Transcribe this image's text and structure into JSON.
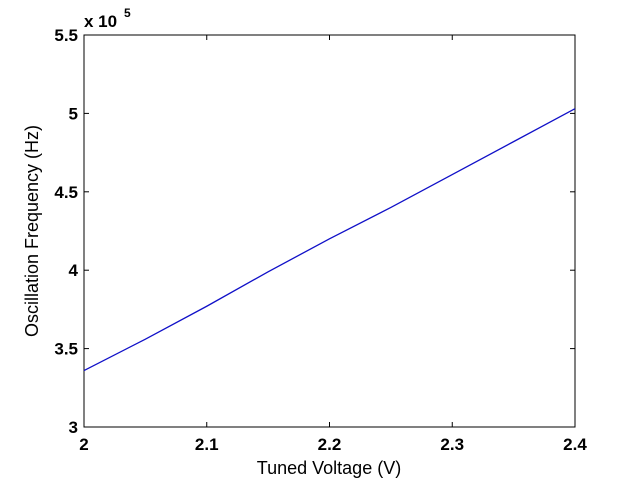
{
  "chart_data": {
    "type": "line",
    "title": "",
    "xlabel": "Tuned Voltage (V)",
    "ylabel": "Oscillation Frequency (Hz)",
    "xlim": [
      2.0,
      2.4
    ],
    "ylim": [
      3.0,
      5.5
    ],
    "x_ticks": [
      "2",
      "2.1",
      "2.2",
      "2.3",
      "2.4"
    ],
    "y_ticks": [
      "3",
      "3.5",
      "4",
      "4.5",
      "5",
      "5.5"
    ],
    "y_multiplier": {
      "base": "x 10",
      "exponent": "5"
    },
    "grid": false,
    "series": [
      {
        "color": "#1010c8",
        "x": [
          2.0,
          2.05,
          2.1,
          2.15,
          2.2,
          2.25,
          2.3,
          2.35,
          2.4
        ],
        "y": [
          3.36,
          3.56,
          3.77,
          3.99,
          4.2,
          4.4,
          4.61,
          4.82,
          5.03
        ]
      }
    ]
  }
}
